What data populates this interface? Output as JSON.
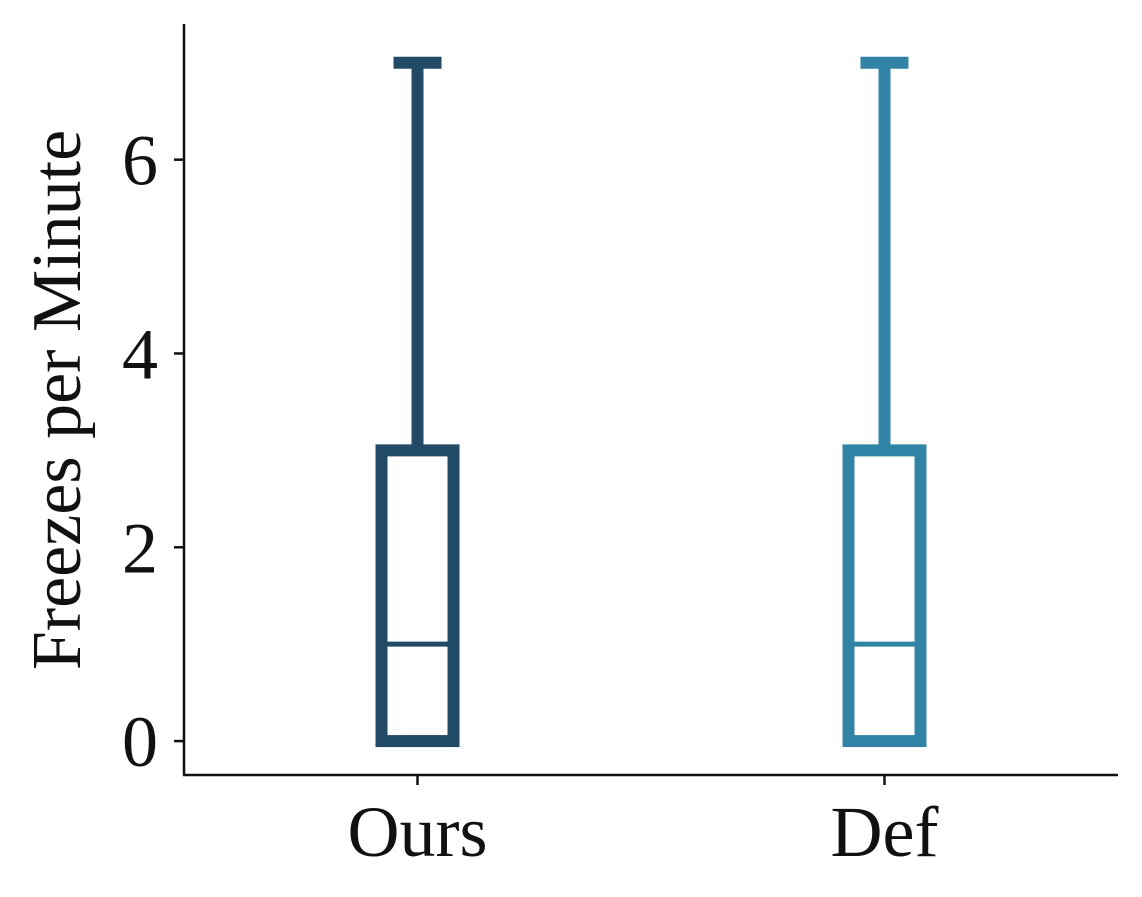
{
  "chart_data": {
    "type": "box",
    "title": "",
    "xlabel": "",
    "ylabel": "Freezes per Minute",
    "ylim": [
      -0.35,
      7.4
    ],
    "yticks": [
      0,
      2,
      4,
      6
    ],
    "grid": false,
    "categories": [
      "Ours",
      "Def"
    ],
    "series": [
      {
        "category": "Ours",
        "min": 0,
        "q1": 0,
        "median": 1,
        "q3": 3,
        "max": 7,
        "color": "#214a66"
      },
      {
        "category": "Def",
        "min": 0,
        "q1": 0,
        "median": 1,
        "q3": 3,
        "max": 7,
        "color": "#3184a6"
      }
    ]
  }
}
